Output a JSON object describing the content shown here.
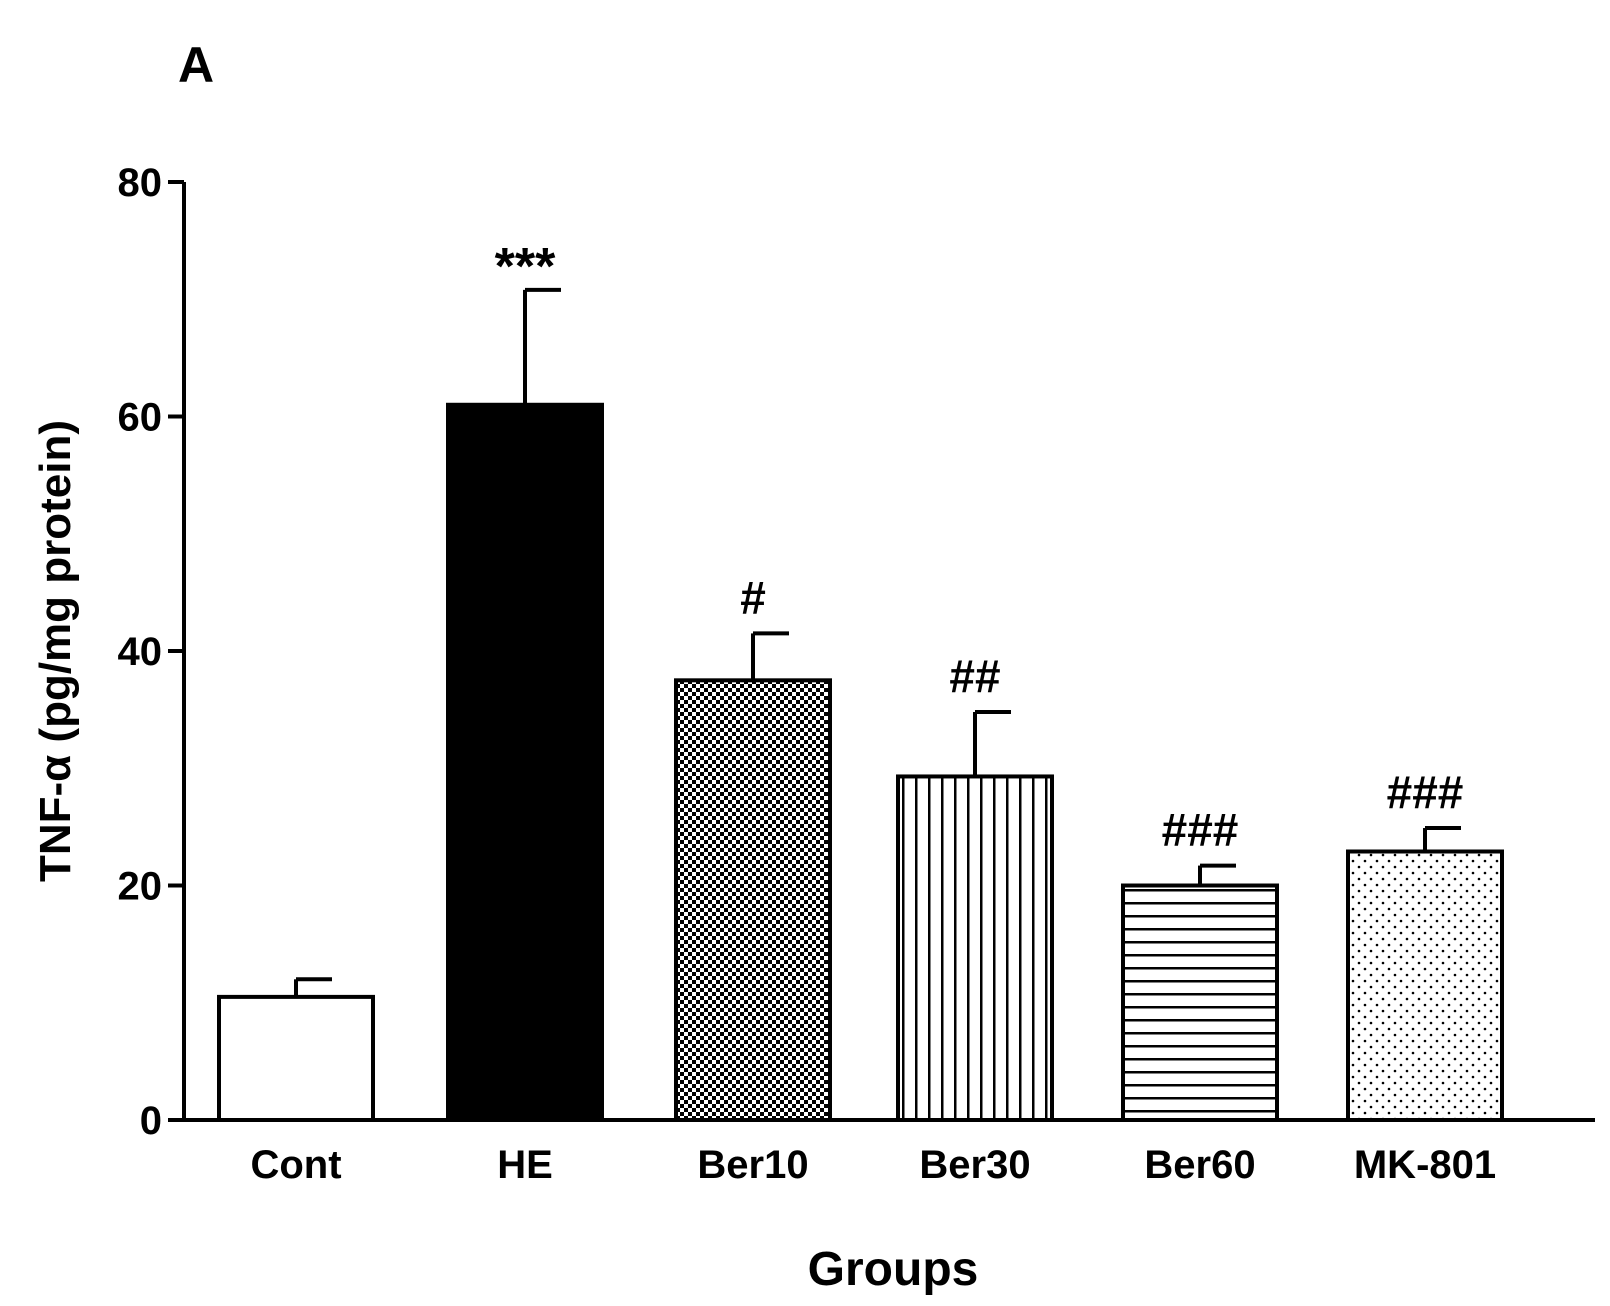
{
  "panel_label": "A",
  "chart_data": {
    "type": "bar",
    "title": "",
    "xlabel": "Groups",
    "ylabel": "TNF-α (pg/mg protein)",
    "ylim": [
      0,
      80
    ],
    "yticks": [
      0,
      20,
      40,
      60,
      80
    ],
    "categories": [
      "Cont",
      "HE",
      "Ber10",
      "Ber30",
      "Ber60",
      "MK-801"
    ],
    "values": [
      10.5,
      61,
      37.5,
      29.3,
      20,
      22.9
    ],
    "errors": [
      1.5,
      9.8,
      4,
      5.5,
      1.7,
      2
    ],
    "fills": [
      "white",
      "solid-black",
      "checker",
      "vertical-lines",
      "horizontal-lines",
      "dots"
    ],
    "annotations": [
      "",
      "***",
      "#",
      "##",
      "###",
      "###"
    ]
  }
}
